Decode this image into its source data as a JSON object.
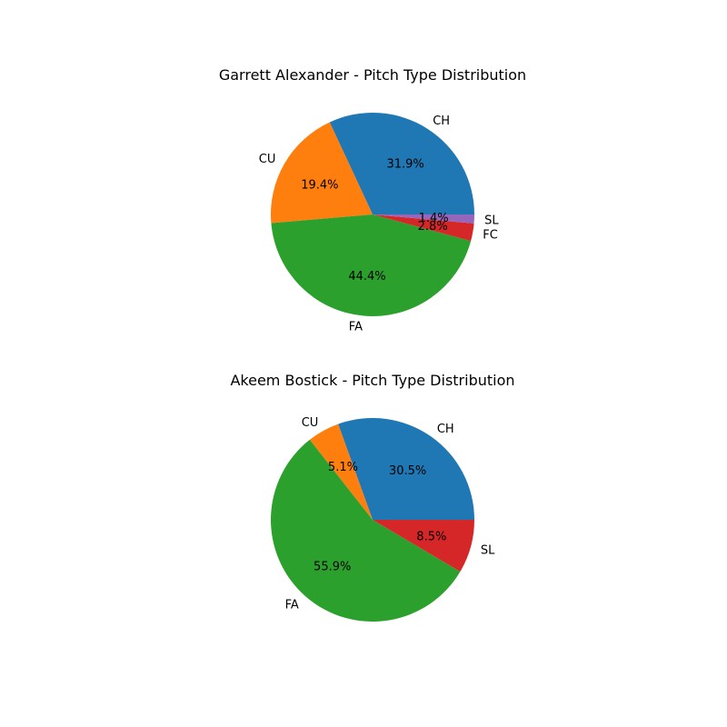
{
  "chart_data": [
    {
      "type": "pie",
      "title": "Garrett Alexander - Pitch Type Distribution",
      "categories": [
        "CH",
        "CU",
        "FA",
        "FC",
        "SL"
      ],
      "values": [
        31.9,
        19.4,
        44.4,
        2.8,
        1.4
      ],
      "labels": [
        "31.9%",
        "19.4%",
        "44.4%",
        "2.8%",
        "1.4%"
      ],
      "colors": [
        "#1f77b4",
        "#ff7f0e",
        "#2ca02c",
        "#d62728",
        "#9467bd"
      ]
    },
    {
      "type": "pie",
      "title": "Akeem Bostick - Pitch Type Distribution",
      "categories": [
        "CH",
        "CU",
        "FA",
        "SL"
      ],
      "values": [
        30.5,
        5.1,
        55.9,
        8.5
      ],
      "labels": [
        "30.5%",
        "5.1%",
        "55.9%",
        "8.5%"
      ],
      "colors": [
        "#1f77b4",
        "#ff7f0e",
        "#2ca02c",
        "#d62728"
      ]
    }
  ]
}
